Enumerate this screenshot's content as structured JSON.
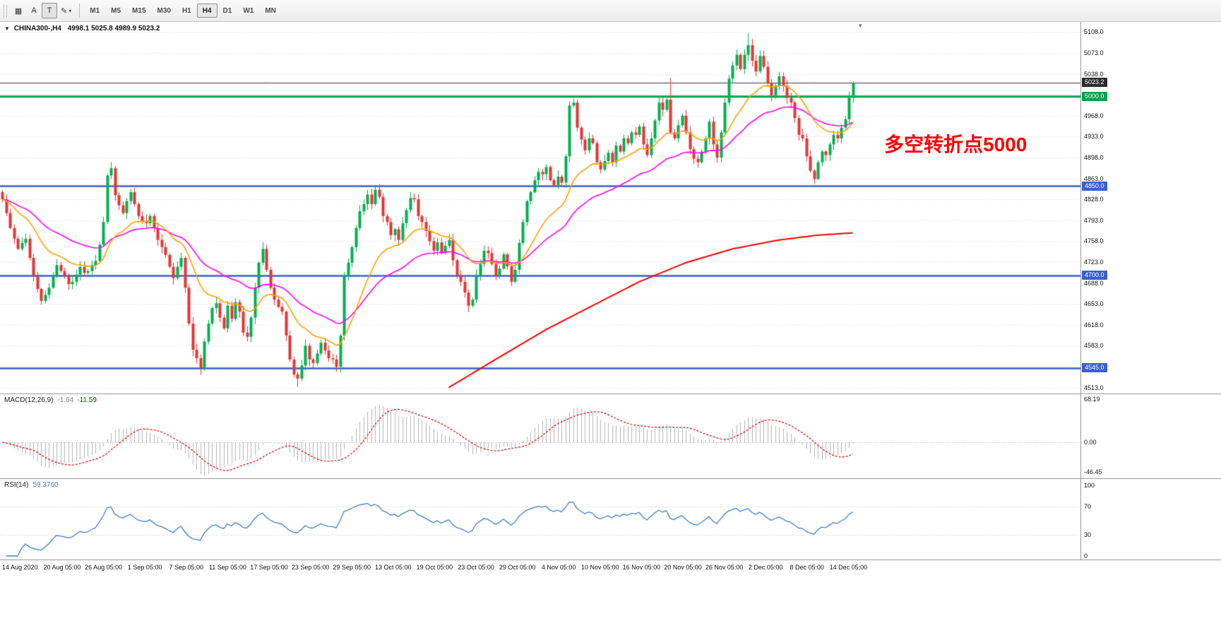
{
  "colors": {
    "bull": "#00b050",
    "bear": "#e53535",
    "ma_fast": "#ffa000",
    "ma_mid": "#ff00ff",
    "ma_slow": "#ff0000",
    "line_green": "#00a14b",
    "line_blue": "#3a5fcd",
    "bid_line": "#3a3a3a",
    "bid_badge": "#2b2b2b",
    "macd_hist": "#b4b4b4",
    "macd_signal": "#e00000",
    "rsi": "#3d7ecb",
    "grid": "#dedede",
    "annotation": "#ff0000"
  },
  "icons": {
    "grid_tool": "▦",
    "dropdown": "▾",
    "triangle_down": "▼",
    "pencil": "✎",
    "shift_marker": "▾"
  },
  "toolbar": {
    "tools": [
      {
        "name": "chart-grid",
        "label": "▦"
      },
      {
        "name": "text",
        "label": "A"
      },
      {
        "name": "text-label",
        "label": "T"
      },
      {
        "name": "shapes",
        "label": "✎"
      }
    ],
    "timeframes": [
      "M1",
      "M5",
      "M15",
      "M30",
      "H1",
      "H4",
      "D1",
      "W1",
      "MN"
    ],
    "active_timeframe": "H4"
  },
  "chart": {
    "symbol_period": "CHINA300-,H4",
    "ohlc": "4998.1 5025.8 4989.9 5023.2",
    "annotation": "多空转折点5000",
    "bid": {
      "price": 5023.2,
      "label": "5023.2"
    },
    "price_axis": {
      "min": 4513,
      "max": 5108,
      "step": 35,
      "hidden_ticks": [
        5003,
        4548
      ]
    },
    "view": {
      "price_top": 5125,
      "price_bottom": 4503
    },
    "hlines": [
      {
        "price": 5000,
        "label": "5000.0",
        "color": "green"
      },
      {
        "price": 4850,
        "label": "4850.0",
        "color": "blue"
      },
      {
        "price": 4700,
        "label": "4700.0",
        "color": "blue"
      },
      {
        "price": 4545,
        "label": "4545.0",
        "color": "blue"
      }
    ]
  },
  "chart_data": {
    "type": "candlestick",
    "symbol": "CHINA300-",
    "timeframe": "H4",
    "bars": 220,
    "closes": [
      4828,
      4805,
      4780,
      4762,
      4745,
      4755,
      4762,
      4730,
      4700,
      4678,
      4658,
      4668,
      4680,
      4700,
      4718,
      4708,
      4700,
      4686,
      4690,
      4702,
      4715,
      4705,
      4708,
      4718,
      4725,
      4752,
      4790,
      4868,
      4880,
      4835,
      4818,
      4805,
      4825,
      4840,
      4820,
      4800,
      4792,
      4788,
      4800,
      4780,
      4760,
      4748,
      4735,
      4715,
      4696,
      4715,
      4730,
      4680,
      4620,
      4576,
      4562,
      4545,
      4590,
      4620,
      4646,
      4654,
      4630,
      4612,
      4650,
      4628,
      4656,
      4640,
      4605,
      4598,
      4630,
      4680,
      4722,
      4745,
      4710,
      4680,
      4660,
      4648,
      4640,
      4600,
      4560,
      4535,
      4528,
      4550,
      4583,
      4560,
      4554,
      4570,
      4588,
      4575,
      4562,
      4560,
      4548,
      4600,
      4700,
      4722,
      4748,
      4780,
      4808,
      4820,
      4836,
      4820,
      4844,
      4832,
      4800,
      4790,
      4768,
      4778,
      4760,
      4788,
      4810,
      4830,
      4828,
      4800,
      4790,
      4775,
      4758,
      4742,
      4756,
      4738,
      4750,
      4760,
      4726,
      4700,
      4690,
      4672,
      4650,
      4660,
      4700,
      4720,
      4742,
      4738,
      4720,
      4700,
      4712,
      4736,
      4716,
      4690,
      4710,
      4755,
      4790,
      4825,
      4840,
      4860,
      4874,
      4870,
      4882,
      4860,
      4852,
      4866,
      4856,
      4900,
      4985,
      4990,
      4948,
      4928,
      4910,
      4930,
      4922,
      4890,
      4878,
      4892,
      4906,
      4890,
      4918,
      4908,
      4930,
      4922,
      4940,
      4936,
      4950,
      4920,
      4902,
      4930,
      4960,
      4990,
      4978,
      4995,
      4940,
      4930,
      4952,
      4968,
      4940,
      4912,
      4896,
      4890,
      4908,
      4930,
      4958,
      4920,
      4898,
      4940,
      4990,
      5030,
      5052,
      5070,
      5046,
      5070,
      5086,
      5060,
      5042,
      5068,
      5050,
      5022,
      5002,
      5018,
      5034,
      5018,
      4998,
      4990,
      4964,
      4936,
      4930,
      4900,
      4876,
      4862,
      4890,
      4908,
      4902,
      4920,
      4936,
      4930,
      4948,
      4962,
      4998,
      5023.2
    ],
    "last_ohlc": [
      4998.1,
      5025.8,
      4989.9,
      5023.2
    ],
    "wick_overrides": {
      "76": {
        "low": 4514
      },
      "172": {
        "high": 5031
      },
      "192": {
        "high": 5106
      }
    },
    "ma_fast_period": 18,
    "ma_mid_period": 40,
    "ma_slow_anchors": [
      [
        115,
        4513
      ],
      [
        127,
        4560
      ],
      [
        140,
        4610
      ],
      [
        152,
        4650
      ],
      [
        164,
        4690
      ],
      [
        176,
        4722
      ],
      [
        188,
        4745
      ],
      [
        200,
        4760
      ],
      [
        210,
        4768
      ],
      [
        219,
        4772
      ]
    ]
  },
  "macd": {
    "name": "MACD(12,26,9)",
    "value_main": "-1.64",
    "value_signal": "-11.59",
    "params": [
      12,
      26,
      9
    ],
    "axis": [
      {
        "label": "68.19",
        "value": 68.19
      },
      {
        "label": "0.00",
        "value": 0
      },
      {
        "label": "-46.45",
        "value": -46.45
      }
    ]
  },
  "rsi": {
    "name": "RSI(14)",
    "value": "59.3760",
    "period": 14,
    "levels": [
      70,
      30
    ],
    "axis": [
      {
        "label": "100",
        "value": 100
      },
      {
        "label": "70",
        "value": 70
      },
      {
        "label": "30",
        "value": 30
      },
      {
        "label": "0",
        "value": 0
      }
    ]
  },
  "time_axis": [
    "14 Aug 2020",
    "20 Aug 05:00",
    "26 Aug 05:00",
    "1 Sep 05:00",
    "7 Sep 05:00",
    "11 Sep 05:00",
    "17 Sep 05:00",
    "23 Sep 05:00",
    "29 Sep 05:00",
    "13 Oct 05:00",
    "19 Oct 05:00",
    "23 Oct 05:00",
    "29 Oct 05:00",
    "4 Nov 05:00",
    "10 Nov 05:00",
    "16 Nov 05:00",
    "20 Nov 05:00",
    "26 Nov 05:00",
    "2 Dec 05:00",
    "8 Dec 05:00",
    "14 Dec 05:00"
  ]
}
